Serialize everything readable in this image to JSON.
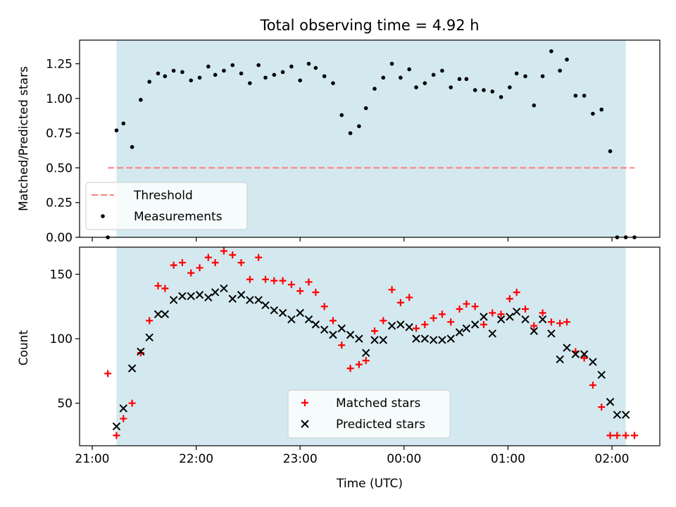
{
  "figure": {
    "title": "Total observing time = 4.92 h",
    "xlabel": "Time (UTC)",
    "x_tick_labels": [
      "21:00",
      "22:00",
      "23:00",
      "00:00",
      "01:00",
      "02:00"
    ]
  },
  "chart_data": [
    {
      "type": "scatter",
      "title": "Total observing time = 4.92 h",
      "ylabel": "Matched/Predicted stars",
      "ylim": [
        0,
        1.42
      ],
      "y_ticks": [
        "0.00",
        "0.25",
        "0.50",
        "0.75",
        "1.00",
        "1.25"
      ],
      "x_ticks": [
        "21:00",
        "22:00",
        "23:00",
        "00:00",
        "01:00",
        "02:00"
      ],
      "shaded_region": {
        "start": "21:14",
        "end": "02:08",
        "color": "#d3e9ef"
      },
      "legend": {
        "placement": "lower-left",
        "entries": [
          {
            "label": "Threshold",
            "color": "#ff7f7f",
            "style": "dashed-line"
          },
          {
            "label": "Measurements",
            "color": "#000000",
            "style": "dot"
          }
        ]
      },
      "series": [
        {
          "name": "Threshold",
          "kind": "line",
          "color": "#ff7f7f",
          "x": [
            "21:09",
            "02:13"
          ],
          "y": [
            0.5,
            0.5
          ]
        },
        {
          "name": "Measurements",
          "kind": "points",
          "color": "#000000",
          "x": [
            "21:09",
            "21:14",
            "21:18",
            "21:23",
            "21:28",
            "21:33",
            "21:38",
            "21:42",
            "21:47",
            "21:52",
            "21:57",
            "22:02",
            "22:07",
            "22:11",
            "22:16",
            "22:21",
            "22:26",
            "22:31",
            "22:36",
            "22:40",
            "22:45",
            "22:50",
            "22:55",
            "23:00",
            "23:05",
            "23:09",
            "23:14",
            "23:19",
            "23:24",
            "23:29",
            "23:34",
            "23:38",
            "23:43",
            "23:48",
            "23:53",
            "23:58",
            "00:03",
            "00:07",
            "00:12",
            "00:17",
            "00:22",
            "00:27",
            "00:32",
            "00:36",
            "00:41",
            "00:46",
            "00:51",
            "00:56",
            "01:01",
            "01:05",
            "01:10",
            "01:15",
            "01:20",
            "01:25",
            "01:30",
            "01:34",
            "01:39",
            "01:44",
            "01:49",
            "01:54",
            "01:59",
            "02:03",
            "02:08",
            "02:13"
          ],
          "y": [
            0.0,
            0.77,
            0.82,
            0.65,
            0.99,
            1.12,
            1.18,
            1.16,
            1.2,
            1.19,
            1.13,
            1.15,
            1.23,
            1.17,
            1.2,
            1.24,
            1.18,
            1.11,
            1.24,
            1.15,
            1.17,
            1.19,
            1.23,
            1.13,
            1.25,
            1.22,
            1.16,
            1.11,
            0.88,
            0.75,
            0.8,
            0.93,
            1.07,
            1.15,
            1.25,
            1.15,
            1.21,
            1.08,
            1.11,
            1.17,
            1.2,
            1.08,
            1.14,
            1.14,
            1.06,
            1.06,
            1.05,
            1.01,
            1.08,
            1.18,
            1.16,
            0.95,
            1.16,
            1.34,
            1.2,
            1.28,
            1.02,
            1.02,
            0.89,
            0.92,
            0.62,
            0.0,
            0.0,
            0.0
          ]
        }
      ]
    },
    {
      "type": "scatter",
      "xlabel": "Time (UTC)",
      "ylabel": "Count",
      "ylim": [
        17,
        171
      ],
      "y_ticks": [
        "50",
        "100",
        "150"
      ],
      "x_ticks": [
        "21:00",
        "22:00",
        "23:00",
        "00:00",
        "01:00",
        "02:00"
      ],
      "shaded_region": {
        "start": "21:14",
        "end": "02:08",
        "color": "#d3e9ef"
      },
      "legend": {
        "placement": "lower-center",
        "entries": [
          {
            "label": "Matched stars",
            "color": "#ff0000",
            "style": "plus"
          },
          {
            "label": "Predicted stars",
            "color": "#000000",
            "style": "x"
          }
        ]
      },
      "series": [
        {
          "name": "Matched stars",
          "marker": "plus",
          "color": "#ff0000",
          "x": [
            "21:09",
            "21:14",
            "21:18",
            "21:23",
            "21:28",
            "21:33",
            "21:38",
            "21:42",
            "21:47",
            "21:52",
            "21:57",
            "22:02",
            "22:07",
            "22:11",
            "22:16",
            "22:21",
            "22:26",
            "22:31",
            "22:36",
            "22:40",
            "22:45",
            "22:50",
            "22:55",
            "23:00",
            "23:05",
            "23:09",
            "23:14",
            "23:19",
            "23:24",
            "23:29",
            "23:34",
            "23:38",
            "23:43",
            "23:48",
            "23:53",
            "23:58",
            "00:03",
            "00:07",
            "00:12",
            "00:17",
            "00:22",
            "00:27",
            "00:32",
            "00:36",
            "00:41",
            "00:46",
            "00:51",
            "00:56",
            "01:01",
            "01:05",
            "01:10",
            "01:15",
            "01:20",
            "01:25",
            "01:30",
            "01:34",
            "01:39",
            "01:44",
            "01:49",
            "01:54",
            "01:59",
            "02:03",
            "02:08",
            "02:13"
          ],
          "y": [
            73,
            25,
            38,
            50,
            89,
            114,
            141,
            139,
            157,
            159,
            151,
            155,
            163,
            159,
            168,
            165,
            159,
            146,
            163,
            146,
            145,
            145,
            142,
            137,
            144,
            136,
            125,
            114,
            95,
            77,
            80,
            83,
            106,
            114,
            138,
            128,
            132,
            108,
            111,
            116,
            119,
            113,
            123,
            127,
            125,
            111,
            120,
            119,
            131,
            136,
            123,
            110,
            120,
            113,
            112,
            113,
            90,
            85,
            64,
            47,
            25,
            25,
            25,
            25
          ]
        },
        {
          "name": "Predicted stars",
          "marker": "x",
          "color": "#000000",
          "x": [
            "21:14",
            "21:18",
            "21:23",
            "21:28",
            "21:33",
            "21:38",
            "21:42",
            "21:47",
            "21:52",
            "21:57",
            "22:02",
            "22:07",
            "22:11",
            "22:16",
            "22:21",
            "22:26",
            "22:31",
            "22:36",
            "22:40",
            "22:45",
            "22:50",
            "22:55",
            "23:00",
            "23:05",
            "23:09",
            "23:14",
            "23:19",
            "23:24",
            "23:29",
            "23:34",
            "23:38",
            "23:43",
            "23:48",
            "23:53",
            "23:58",
            "00:03",
            "00:07",
            "00:12",
            "00:17",
            "00:22",
            "00:27",
            "00:32",
            "00:36",
            "00:41",
            "00:46",
            "00:51",
            "00:56",
            "01:01",
            "01:05",
            "01:10",
            "01:15",
            "01:20",
            "01:25",
            "01:30",
            "01:34",
            "01:39",
            "01:44",
            "01:49",
            "01:54",
            "01:59",
            "02:03",
            "02:08"
          ],
          "y": [
            32,
            46,
            77,
            90,
            101,
            119,
            119,
            130,
            133,
            133,
            134,
            132,
            136,
            139,
            131,
            134,
            130,
            130,
            126,
            122,
            120,
            115,
            120,
            115,
            111,
            107,
            103,
            108,
            103,
            100,
            89,
            99,
            99,
            110,
            111,
            109,
            100,
            100,
            99,
            99,
            100,
            105,
            108,
            111,
            117,
            104,
            115,
            117,
            121,
            115,
            106,
            115,
            104,
            84,
            93,
            88,
            88,
            82,
            72,
            51,
            41,
            41
          ]
        }
      ]
    }
  ]
}
